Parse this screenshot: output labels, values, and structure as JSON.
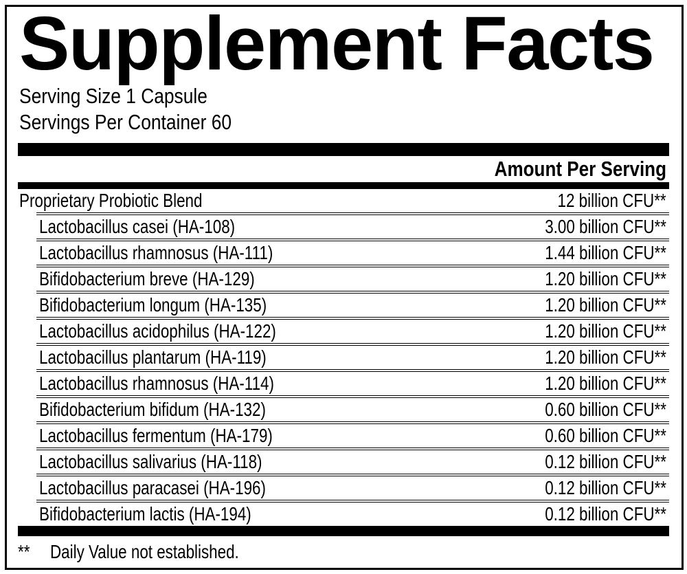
{
  "label": {
    "title": "Supplement Facts",
    "serving_size": "Serving Size 1 Capsule",
    "servings_per_container": "Servings Per Container 60",
    "amount_per_serving_header": "Amount Per Serving",
    "rows": [
      {
        "name": "Proprietary Probiotic Blend",
        "amount": "12 billion CFU**",
        "indent": false,
        "italic": false
      },
      {
        "name": "Lactobacillus casei (HA-108)",
        "amount": "3.00 billion CFU**",
        "indent": true,
        "italic": true
      },
      {
        "name": "Lactobacillus rhamnosus (HA-111)",
        "amount": "1.44 billion CFU**",
        "indent": true,
        "italic": true
      },
      {
        "name": "Bifidobacterium breve (HA-129)",
        "amount": "1.20 billion CFU**",
        "indent": true,
        "italic": true
      },
      {
        "name": "Bifidobacterium longum (HA-135)",
        "amount": "1.20 billion CFU**",
        "indent": true,
        "italic": true
      },
      {
        "name": "Lactobacillus acidophilus (HA-122)",
        "amount": "1.20 billion CFU**",
        "indent": true,
        "italic": true
      },
      {
        "name": "Lactobacillus plantarum (HA-119)",
        "amount": "1.20 billion CFU**",
        "indent": true,
        "italic": true
      },
      {
        "name": "Lactobacillus rhamnosus (HA-114)",
        "amount": "1.20 billion CFU**",
        "indent": true,
        "italic": true
      },
      {
        "name": "Bifidobacterium bifidum (HA-132)",
        "amount": "0.60 billion CFU**",
        "indent": true,
        "italic": true
      },
      {
        "name": "Lactobacillus fermentum (HA-179)",
        "amount": "0.60 billion CFU**",
        "indent": true,
        "italic": true
      },
      {
        "name": "Lactobacillus salivarius (HA-118)",
        "amount": "0.12 billion CFU**",
        "indent": true,
        "italic": true
      },
      {
        "name": "Lactobacillus paracasei (HA-196)",
        "amount": "0.12 billion CFU**",
        "indent": true,
        "italic": true
      },
      {
        "name": "Bifidobacterium lactis (HA-194)",
        "amount": "0.12 billion CFU**",
        "indent": true,
        "italic": true
      }
    ],
    "footnote": {
      "marker": "**",
      "text": "Daily Value not established."
    },
    "colors": {
      "ink": "#000000",
      "paper": "#ffffff"
    }
  }
}
